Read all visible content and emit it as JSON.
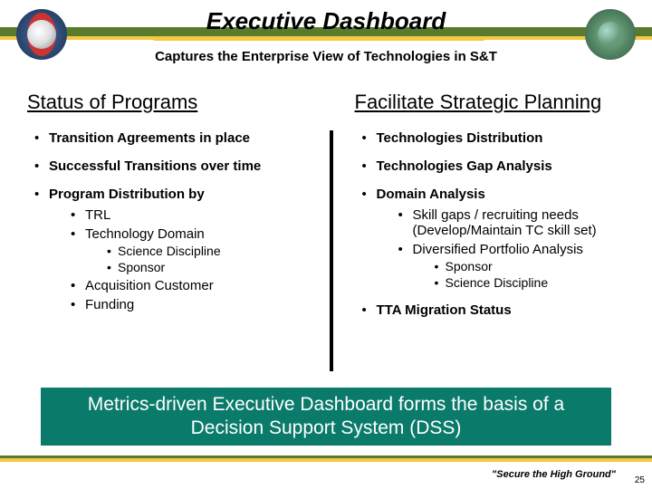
{
  "colors": {
    "olive_band": "#5a7a2e",
    "yellow_band": "#f5c842",
    "callout_bg": "#0a7a6a",
    "callout_text": "#ffffff",
    "background": "#ffffff",
    "text": "#000000"
  },
  "title": "Executive Dashboard",
  "subtitle": "Captures the Enterprise View of Technologies in S&T",
  "left": {
    "heading": "Status of Programs",
    "item1": "Transition Agreements in place",
    "item2": "Successful Transitions over time",
    "item3": "Program Distribution by",
    "sub1": "TRL",
    "sub2": "Technology Domain",
    "sub2a": "Science Discipline",
    "sub2b": "Sponsor",
    "sub3": "Acquisition Customer",
    "sub4": "Funding"
  },
  "right": {
    "heading": "Facilitate Strategic Planning",
    "item1": "Technologies Distribution",
    "item2": "Technologies Gap Analysis",
    "item3": "Domain Analysis",
    "sub1": "Skill gaps / recruiting needs (Develop/Maintain TC skill set)",
    "sub2": "Diversified Portfolio Analysis",
    "sub2a": "Sponsor",
    "sub2b": "Science Discipline",
    "item4": "TTA Migration Status"
  },
  "callout": "Metrics-driven Executive Dashboard forms the basis of a Decision Support System (DSS)",
  "tagline": "\"Secure the High Ground\"",
  "page_number": "25"
}
